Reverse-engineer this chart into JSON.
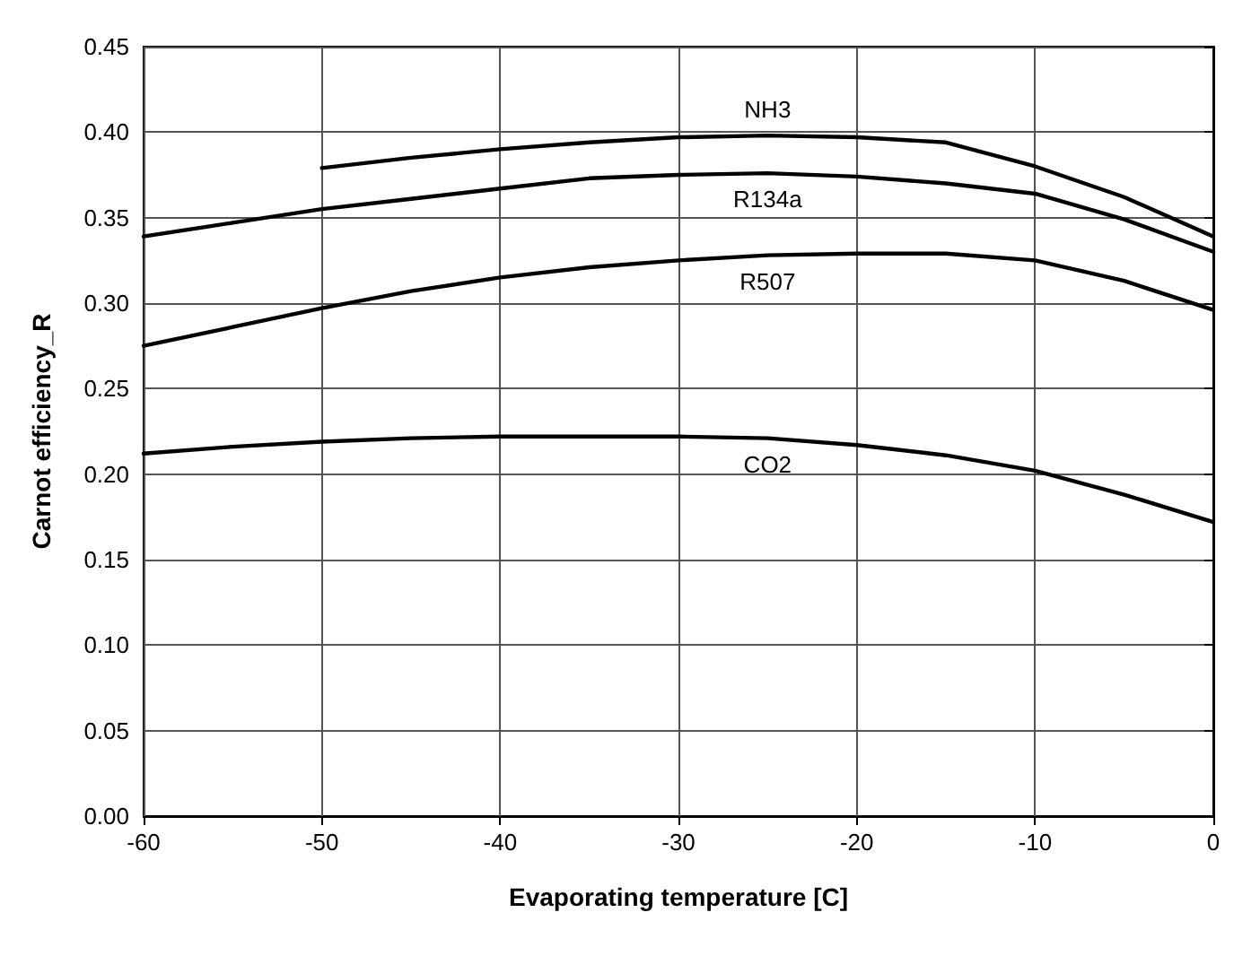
{
  "chart_data": {
    "type": "line",
    "xlabel": "Evaporating temperature [C]",
    "ylabel": "Carnot efficiency_R",
    "xlim": [
      -60,
      0
    ],
    "xticks": [
      -60,
      -50,
      -40,
      -30,
      -20,
      -10,
      0
    ],
    "ylim": [
      0,
      0.45
    ],
    "yticks": [
      {
        "value": 0,
        "label": "0.00"
      },
      {
        "value": 0.05,
        "label": "0.05"
      },
      {
        "value": 0.1,
        "label": "0.10"
      },
      {
        "value": 0.15,
        "label": "0.15"
      },
      {
        "value": 0.2,
        "label": "0.20"
      },
      {
        "value": 0.25,
        "label": "0.25"
      },
      {
        "value": 0.3,
        "label": "0.30"
      },
      {
        "value": 0.35,
        "label": "0.35"
      },
      {
        "value": 0.4,
        "label": "0.40"
      },
      {
        "value": 0.45,
        "label": "0.45"
      }
    ],
    "grid": true,
    "legend": false,
    "marker": "none",
    "line_style": "solid",
    "x": [
      -60,
      -55,
      -50,
      -45,
      -40,
      -35,
      -30,
      -25,
      -20,
      -15,
      -10,
      -5,
      0
    ],
    "series": [
      {
        "name": "NH3",
        "color": "#000000",
        "values": [
          null,
          null,
          0.379,
          0.385,
          0.39,
          0.394,
          0.397,
          0.398,
          0.397,
          0.394,
          0.38,
          0.362,
          0.339
        ]
      },
      {
        "name": "R134a",
        "color": "#000000",
        "values": [
          0.339,
          0.347,
          0.355,
          0.361,
          0.367,
          0.373,
          0.375,
          0.376,
          0.374,
          0.37,
          0.364,
          0.349,
          0.33
        ]
      },
      {
        "name": "R507",
        "color": "#000000",
        "values": [
          0.275,
          0.286,
          0.297,
          0.307,
          0.315,
          0.321,
          0.325,
          0.328,
          0.329,
          0.329,
          0.325,
          0.313,
          0.296
        ]
      },
      {
        "name": "CO2",
        "color": "#000000",
        "values": [
          0.212,
          0.216,
          0.219,
          0.221,
          0.222,
          0.222,
          0.222,
          0.221,
          0.217,
          0.211,
          0.202,
          0.188,
          0.172
        ]
      }
    ]
  }
}
